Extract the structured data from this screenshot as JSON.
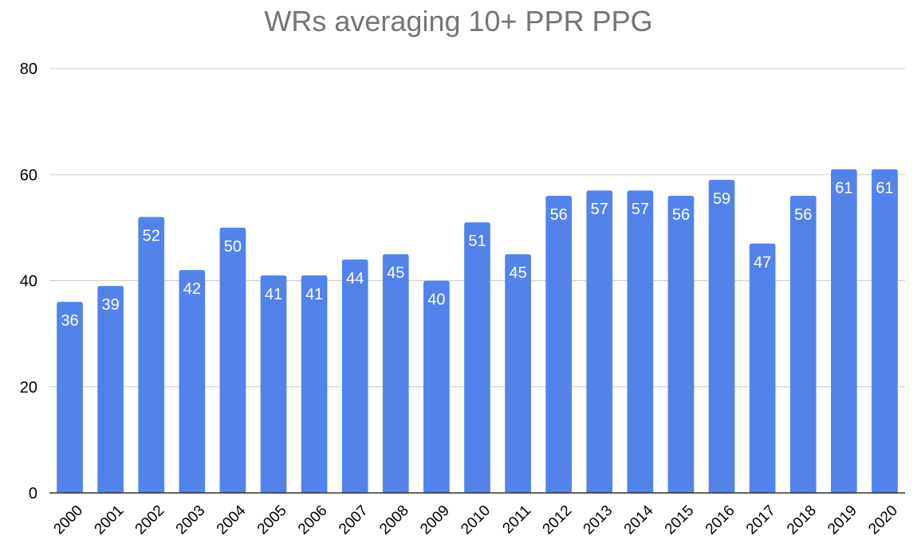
{
  "chart_data": {
    "type": "bar",
    "title": "WRs averaging 10+ PPR PPG",
    "xlabel": "",
    "ylabel": "",
    "categories": [
      "2000",
      "2001",
      "2002",
      "2003",
      "2004",
      "2005",
      "2006",
      "2007",
      "2008",
      "2009",
      "2010",
      "2011",
      "2012",
      "2013",
      "2014",
      "2015",
      "2016",
      "2017",
      "2018",
      "2019",
      "2020"
    ],
    "values": [
      36,
      39,
      52,
      42,
      50,
      41,
      41,
      44,
      45,
      40,
      51,
      45,
      56,
      57,
      57,
      56,
      59,
      47,
      56,
      61,
      61
    ],
    "ylim": [
      0,
      80
    ],
    "yticks": [
      0,
      20,
      40,
      60,
      80
    ],
    "grid": true,
    "legend": "none",
    "data_labels": true,
    "colors": {
      "bar": "#5283EB",
      "grid": "#cccccc",
      "axis": "#333333",
      "label": "#ffffff",
      "title": "#757575"
    }
  }
}
